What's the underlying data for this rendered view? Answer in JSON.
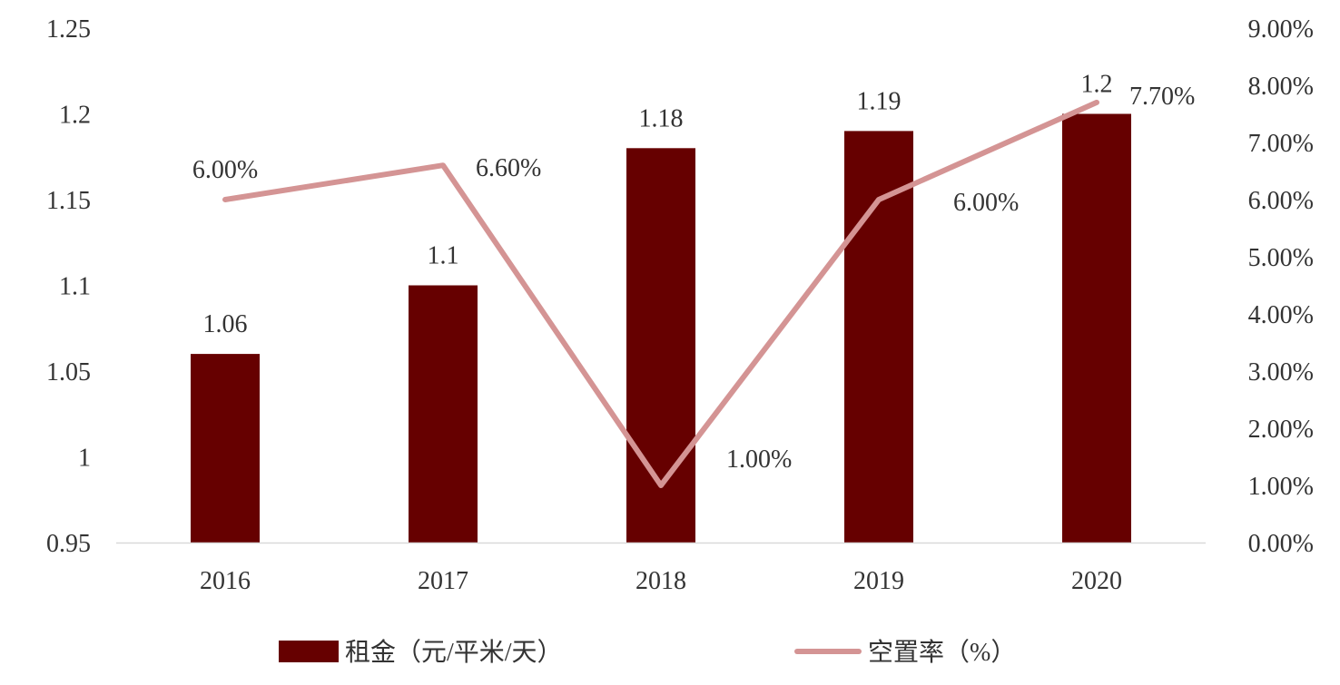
{
  "chart_data": {
    "type": "bar+line",
    "categories": [
      "2016",
      "2017",
      "2018",
      "2019",
      "2020"
    ],
    "series": [
      {
        "name": "租金（元/平米/天）",
        "type": "bar",
        "axis": "left",
        "values": [
          1.06,
          1.1,
          1.18,
          1.19,
          1.2
        ],
        "labels": [
          "1.06",
          "1.1",
          "1.18",
          "1.19",
          "1.2"
        ],
        "color": "#660000"
      },
      {
        "name": "空置率（%）",
        "type": "line",
        "axis": "right",
        "values": [
          6.0,
          6.6,
          1.0,
          6.0,
          7.7
        ],
        "labels": [
          "6.00%",
          "6.60%",
          "1.00%",
          "6.00%",
          "7.70%"
        ],
        "color": "#d49494"
      }
    ],
    "left_axis": {
      "ylim": [
        0.95,
        1.25
      ],
      "ticks": [
        0.95,
        1.0,
        1.05,
        1.1,
        1.15,
        1.2,
        1.25
      ],
      "tick_labels": [
        "0.95",
        "1",
        "1.05",
        "1.1",
        "1.15",
        "1.2",
        "1.25"
      ]
    },
    "right_axis": {
      "ylim": [
        0,
        9
      ],
      "ticks": [
        0,
        1,
        2,
        3,
        4,
        5,
        6,
        7,
        8,
        9
      ],
      "tick_labels": [
        "0.00%",
        "1.00%",
        "2.00%",
        "3.00%",
        "4.00%",
        "5.00%",
        "6.00%",
        "7.00%",
        "8.00%",
        "9.00%"
      ]
    },
    "grid": false,
    "legend_position": "bottom",
    "axis_color": "#d9d9d9"
  }
}
